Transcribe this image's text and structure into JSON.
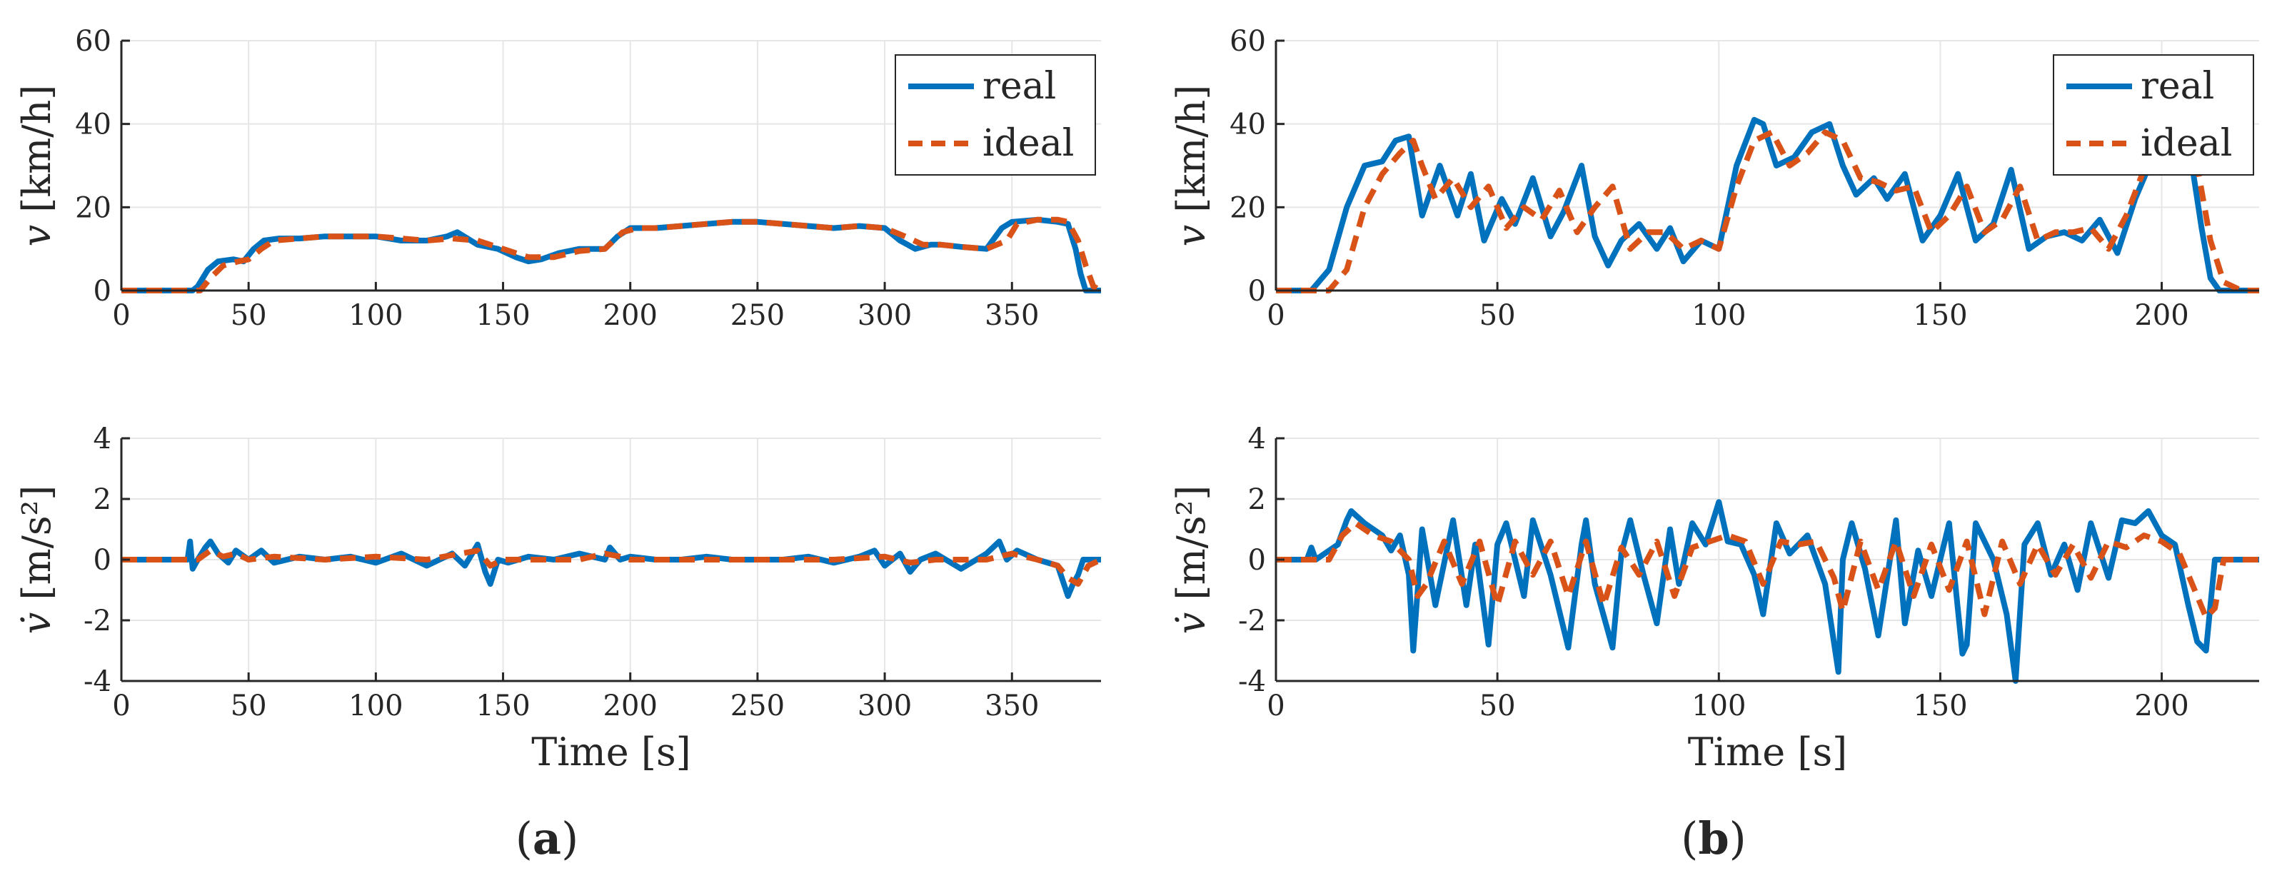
{
  "figure": {
    "panel_labels": [
      {
        "open": "(",
        "letter": "a",
        "close": ")"
      },
      {
        "open": "(",
        "letter": "b",
        "close": ")"
      }
    ]
  },
  "colors": {
    "real": "#0072BD",
    "ideal": "#D95319",
    "axis": "#262626",
    "grid": "#e6e6e6"
  },
  "chart_data": [
    {
      "id": "a-velocity",
      "type": "line",
      "panel": "a",
      "xlim": [
        0,
        385
      ],
      "ylim": [
        0,
        60
      ],
      "xticks": [
        0,
        50,
        100,
        150,
        200,
        250,
        300,
        350
      ],
      "yticks": [
        0,
        20,
        40,
        60
      ],
      "ylabel": {
        "sym": "v",
        "unit": "[km/h]"
      },
      "xlabel": "",
      "legend": {
        "position": "top-right",
        "entries": [
          "real",
          "ideal"
        ]
      },
      "series": [
        {
          "name": "real",
          "style": "solid",
          "x": [
            0,
            28,
            30,
            34,
            38,
            44,
            48,
            52,
            56,
            62,
            70,
            80,
            90,
            100,
            110,
            120,
            128,
            132,
            140,
            148,
            155,
            160,
            165,
            172,
            180,
            190,
            195,
            200,
            210,
            220,
            230,
            240,
            250,
            260,
            270,
            280,
            290,
            300,
            306,
            312,
            318,
            322,
            330,
            340,
            346,
            350,
            360,
            368,
            372,
            375,
            377,
            379,
            385
          ],
          "y": [
            0,
            0,
            1,
            5,
            7,
            7.5,
            7,
            10,
            12,
            12.5,
            12.5,
            13,
            13,
            13,
            12,
            12,
            13,
            14,
            11,
            10,
            8,
            7,
            7.5,
            9,
            10,
            10,
            13,
            15,
            15,
            15.5,
            16,
            16.5,
            16.5,
            16,
            15.5,
            15,
            15.5,
            15,
            12,
            10,
            11,
            11,
            10.5,
            10,
            15,
            16.5,
            17,
            16.5,
            16,
            10,
            4,
            0,
            0
          ]
        },
        {
          "name": "ideal",
          "style": "dashed",
          "x": [
            0,
            31,
            35,
            40,
            46,
            50,
            55,
            60,
            70,
            80,
            90,
            100,
            110,
            120,
            130,
            140,
            150,
            160,
            170,
            180,
            190,
            197,
            203,
            210,
            220,
            230,
            240,
            250,
            260,
            270,
            280,
            290,
            300,
            308,
            315,
            322,
            330,
            340,
            348,
            352,
            360,
            368,
            372,
            376,
            379,
            382,
            385
          ],
          "y": [
            0,
            0,
            3,
            6,
            7,
            7.5,
            10,
            12,
            12.5,
            13,
            13,
            13,
            12.5,
            12,
            12.5,
            12,
            10,
            8,
            8,
            9.5,
            10,
            14,
            15,
            15,
            15.5,
            16,
            16.5,
            16.5,
            16,
            15.5,
            15,
            15.5,
            15,
            13,
            11,
            11,
            10.5,
            10,
            12,
            16,
            17,
            17,
            16.5,
            12,
            6,
            1,
            0
          ]
        }
      ]
    },
    {
      "id": "b-velocity",
      "type": "line",
      "panel": "b",
      "xlim": [
        0,
        222
      ],
      "ylim": [
        0,
        60
      ],
      "xticks": [
        0,
        50,
        100,
        150,
        200
      ],
      "yticks": [
        0,
        20,
        40,
        60
      ],
      "ylabel": {
        "sym": "v",
        "unit": "[km/h]"
      },
      "xlabel": "",
      "legend": {
        "position": "top-right",
        "entries": [
          "real",
          "ideal"
        ]
      },
      "series": [
        {
          "name": "real",
          "style": "solid",
          "x": [
            0,
            8,
            12,
            16,
            20,
            24,
            27,
            30,
            33,
            37,
            41,
            44,
            47,
            51,
            54,
            58,
            62,
            65,
            69,
            72,
            75,
            78,
            82,
            86,
            89,
            92,
            96,
            100,
            104,
            108,
            110,
            113,
            117,
            121,
            125,
            128,
            131,
            135,
            138,
            142,
            146,
            150,
            154,
            158,
            162,
            166,
            170,
            174,
            178,
            182,
            186,
            190,
            194,
            198,
            202,
            206,
            209,
            211,
            213,
            216,
            222
          ],
          "y": [
            0,
            0,
            5,
            20,
            30,
            31,
            36,
            37,
            18,
            30,
            18,
            28,
            12,
            22,
            16,
            27,
            13,
            19,
            30,
            13,
            6,
            12,
            16,
            10,
            15,
            7,
            12,
            10,
            30,
            41,
            40,
            30,
            32,
            38,
            40,
            30,
            23,
            27,
            22,
            28,
            12,
            18,
            28,
            12,
            16,
            29,
            10,
            13,
            14,
            12,
            17,
            9,
            22,
            32,
            35,
            36,
            15,
            3,
            0,
            0,
            0
          ]
        },
        {
          "name": "ideal",
          "style": "dashed",
          "x": [
            0,
            12,
            16,
            20,
            24,
            28,
            31,
            33,
            36,
            40,
            44,
            48,
            52,
            56,
            60,
            64,
            68,
            72,
            76,
            80,
            84,
            88,
            92,
            96,
            100,
            104,
            108,
            112,
            116,
            120,
            124,
            128,
            132,
            136,
            140,
            144,
            148,
            152,
            156,
            160,
            164,
            168,
            172,
            176,
            180,
            184,
            188,
            192,
            196,
            200,
            204,
            208,
            211,
            214,
            218,
            222
          ],
          "y": [
            0,
            0,
            5,
            20,
            28,
            33,
            36,
            30,
            22,
            27,
            20,
            25,
            15,
            20,
            17,
            24,
            14,
            20,
            25,
            10,
            14,
            14,
            10,
            12,
            10,
            25,
            36,
            38,
            30,
            33,
            38,
            36,
            27,
            26,
            24,
            25,
            14,
            18,
            25,
            14,
            17,
            25,
            12,
            14,
            14,
            15,
            10,
            18,
            29,
            33,
            34,
            30,
            12,
            2,
            0,
            0
          ]
        }
      ]
    },
    {
      "id": "a-acceleration",
      "type": "line",
      "panel": "a",
      "xlim": [
        0,
        385
      ],
      "ylim": [
        -4,
        4
      ],
      "xticks": [
        0,
        50,
        100,
        150,
        200,
        250,
        300,
        350
      ],
      "yticks": [
        -4,
        -2,
        0,
        2,
        4
      ],
      "ylabel": {
        "sym": "v̇",
        "unit": "[m/s²]"
      },
      "xlabel": "Time [s]",
      "series": [
        {
          "name": "real",
          "style": "solid",
          "x": [
            0,
            26,
            27,
            28,
            30,
            33,
            35,
            38,
            42,
            45,
            50,
            55,
            60,
            70,
            80,
            90,
            100,
            110,
            120,
            130,
            135,
            140,
            143,
            145,
            148,
            152,
            160,
            170,
            180,
            190,
            192,
            196,
            200,
            210,
            220,
            230,
            240,
            250,
            260,
            270,
            280,
            290,
            296,
            300,
            306,
            310,
            314,
            320,
            330,
            340,
            345,
            348,
            352,
            360,
            368,
            372,
            374,
            376,
            378,
            385
          ],
          "y": [
            0,
            0,
            0.6,
            -0.3,
            0,
            0.4,
            0.6,
            0.2,
            -0.1,
            0.3,
            0,
            0.3,
            -0.1,
            0.1,
            0,
            0.1,
            -0.1,
            0.2,
            -0.2,
            0.2,
            -0.2,
            0.5,
            -0.4,
            -0.8,
            0,
            -0.1,
            0.1,
            0,
            0.2,
            0,
            0.4,
            0,
            0.1,
            0,
            0,
            0.1,
            0,
            0,
            0,
            0.1,
            -0.1,
            0.1,
            0.3,
            -0.2,
            0.2,
            -0.4,
            0,
            0.2,
            -0.3,
            0.2,
            0.6,
            0,
            0.3,
            0,
            -0.2,
            -1.2,
            -0.8,
            -0.5,
            0,
            0
          ]
        },
        {
          "name": "ideal",
          "style": "dashed",
          "x": [
            0,
            30,
            35,
            40,
            45,
            50,
            60,
            80,
            100,
            120,
            140,
            145,
            150,
            160,
            180,
            190,
            196,
            200,
            220,
            240,
            260,
            280,
            300,
            310,
            320,
            340,
            350,
            355,
            360,
            368,
            372,
            376,
            380,
            385
          ],
          "y": [
            0,
            0,
            0.3,
            0.1,
            0.2,
            0,
            0.1,
            0,
            0.1,
            0,
            0.3,
            -0.2,
            0,
            0,
            0,
            0.2,
            0.1,
            0,
            0,
            0,
            0,
            0,
            0.1,
            -0.1,
            0,
            0,
            0.2,
            0.1,
            0,
            -0.2,
            -0.6,
            -0.8,
            -0.2,
            0
          ]
        }
      ]
    },
    {
      "id": "b-acceleration",
      "type": "line",
      "panel": "b",
      "xlim": [
        0,
        222
      ],
      "ylim": [
        -4,
        4
      ],
      "xticks": [
        0,
        50,
        100,
        150,
        200
      ],
      "yticks": [
        -4,
        -2,
        0,
        2,
        4
      ],
      "ylabel": {
        "sym": "v̇",
        "unit": "[m/s²]"
      },
      "xlabel": "Time [s]",
      "series": [
        {
          "name": "real",
          "style": "solid",
          "x": [
            0,
            7,
            8,
            9,
            14,
            16,
            17,
            20,
            24,
            26,
            28,
            30,
            31,
            33,
            36,
            40,
            43,
            45,
            48,
            50,
            52,
            56,
            58,
            62,
            66,
            69,
            70,
            72,
            76,
            78,
            80,
            83,
            86,
            89,
            91,
            94,
            97,
            100,
            102,
            105,
            108,
            110,
            113,
            116,
            120,
            124,
            127,
            128,
            130,
            133,
            136,
            140,
            142,
            145,
            148,
            152,
            155,
            156,
            158,
            162,
            165,
            167,
            169,
            172,
            175,
            178,
            181,
            184,
            188,
            191,
            194,
            197,
            200,
            203,
            206,
            208,
            210,
            212,
            213,
            222
          ],
          "y": [
            0,
            0,
            0.4,
            0,
            0.5,
            1.3,
            1.6,
            1.2,
            0.8,
            0.3,
            0.8,
            -0.5,
            -3,
            1,
            -1.5,
            1.3,
            -1.5,
            0.5,
            -2.8,
            0.5,
            1.2,
            -1.2,
            1.3,
            -0.5,
            -2.9,
            0.5,
            1.3,
            -0.8,
            -2.9,
            0.2,
            1.3,
            -0.5,
            -2.1,
            1,
            -0.8,
            1.2,
            0.5,
            1.9,
            0.6,
            0.5,
            -0.5,
            -1.8,
            1.2,
            0.2,
            0.8,
            -0.8,
            -3.7,
            0,
            1.2,
            -0.3,
            -2.5,
            1.3,
            -2.1,
            0.3,
            -1.2,
            1.2,
            -3.1,
            -2.8,
            1.2,
            0,
            -1.8,
            -4,
            0.5,
            1.2,
            -0.5,
            0.5,
            -1,
            1.2,
            -0.6,
            1.3,
            1.2,
            1.6,
            0.8,
            0.5,
            -1.5,
            -2.7,
            -3,
            0,
            0,
            0
          ]
        },
        {
          "name": "ideal",
          "style": "dashed",
          "x": [
            0,
            12,
            15,
            18,
            22,
            26,
            30,
            32,
            34,
            38,
            42,
            46,
            50,
            54,
            58,
            62,
            66,
            70,
            74,
            78,
            82,
            86,
            90,
            94,
            98,
            102,
            106,
            110,
            114,
            118,
            122,
            126,
            128,
            132,
            136,
            140,
            144,
            148,
            152,
            156,
            160,
            164,
            168,
            172,
            176,
            180,
            184,
            188,
            192,
            196,
            200,
            204,
            208,
            210,
            212,
            214,
            222
          ],
          "y": [
            0,
            0,
            0.8,
            1.2,
            0.8,
            0.6,
            0,
            -1.2,
            -0.8,
            0.6,
            -0.8,
            0.6,
            -1.5,
            0.6,
            -0.5,
            0.6,
            -1.2,
            0.6,
            -1.5,
            0.4,
            -0.5,
            0.6,
            -1.2,
            0.4,
            0.6,
            0.8,
            0.6,
            -0.8,
            0.6,
            0.5,
            0.6,
            -0.6,
            -1.7,
            0.6,
            -1,
            0.6,
            -1.2,
            0.5,
            -1,
            0.6,
            -1.8,
            0.6,
            -0.8,
            0.5,
            -0.5,
            0.5,
            -0.6,
            0.6,
            0.4,
            0.8,
            0.6,
            0.2,
            -1.2,
            -1.9,
            -1.6,
            0,
            0
          ]
        }
      ]
    }
  ]
}
